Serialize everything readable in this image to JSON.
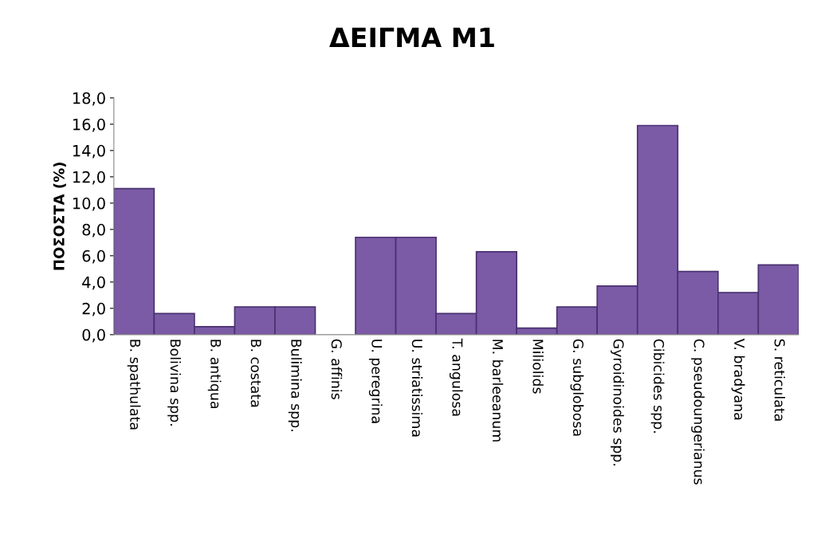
{
  "chart_data": {
    "type": "bar",
    "title": "ΔΕΙΓΜΑ Μ1",
    "ylabel": "ΠΟΣΟΣΤΑ (%)",
    "categories": [
      "B. spathulata",
      "Bolivina spp.",
      "B. antiqua",
      "B. costata",
      "Bulimina spp.",
      "G. affinis",
      "U. peregrina",
      "U. striatissima",
      "T. angulosa",
      "M. barleeanum",
      "Miliolids",
      "G. subglobosa",
      "Gyroidinoides spp.",
      "Cibicides spp.",
      "C. pseudoungerianus",
      "V. bradyana",
      "S. reticulata"
    ],
    "values": [
      11.1,
      1.6,
      0.6,
      2.1,
      2.1,
      0,
      7.4,
      7.4,
      1.6,
      6.3,
      0.5,
      2.1,
      3.7,
      15.9,
      4.8,
      3.2,
      5.3
    ],
    "color": "#7b5aa6",
    "ylim": [
      0,
      18
    ],
    "yticks": [
      {
        "value": 0,
        "label": "0,0"
      },
      {
        "value": 2,
        "label": "2,0"
      },
      {
        "value": 4,
        "label": "4,0"
      },
      {
        "value": 6,
        "label": "6,0"
      },
      {
        "value": 8,
        "label": "8,0"
      },
      {
        "value": 10,
        "label": "10,0"
      },
      {
        "value": 12,
        "label": "12,0"
      },
      {
        "value": 14,
        "label": "14,0"
      },
      {
        "value": 16,
        "label": "16,0"
      },
      {
        "value": 18,
        "label": "18,0"
      }
    ],
    "grid": false
  }
}
